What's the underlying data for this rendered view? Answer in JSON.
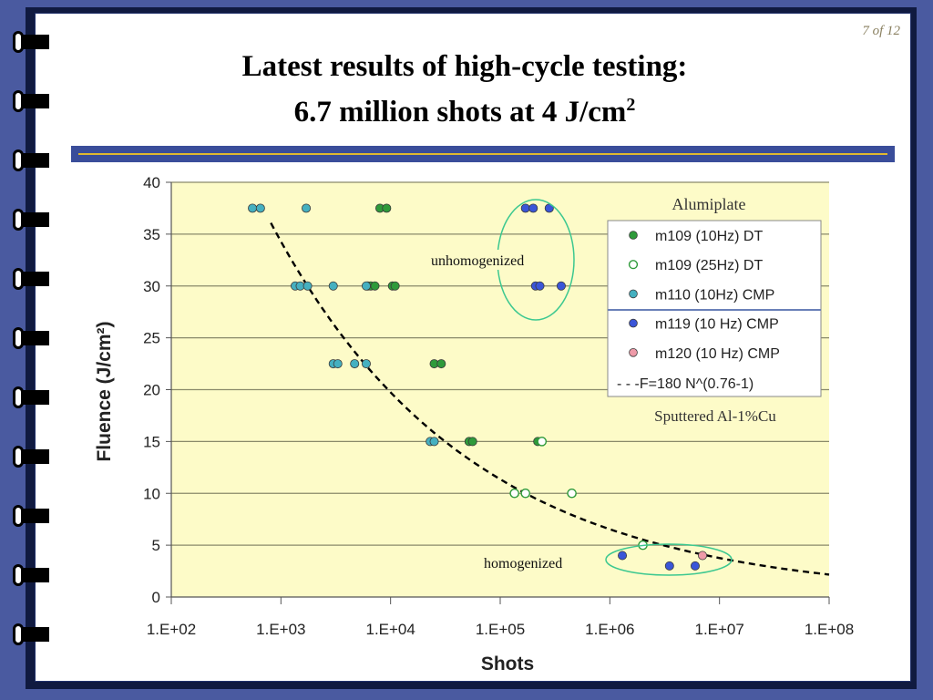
{
  "slide": {
    "page_number": "7 of 12",
    "title_line1": "Latest results of high-cycle testing:",
    "title_line2_prefix": "6.7 million shots at 4 J/cm",
    "title_line2_sup": "2"
  },
  "colors": {
    "background": "#4a5aa0",
    "plot_area": "#fdfbc8",
    "title_rule": "#3a4d9a",
    "title_rule_accent": "#e0b830",
    "annotation_ellipse": "#3cc890"
  },
  "chart_data": {
    "type": "scatter",
    "xlabel": "Shots",
    "ylabel": "Fluence (J/cm²)",
    "xscale": "log",
    "xlim": [
      100,
      100000000
    ],
    "ylim": [
      0,
      40
    ],
    "x_ticks": [
      100,
      1000,
      10000,
      100000,
      1000000,
      10000000,
      100000000
    ],
    "x_tick_labels": [
      "1.E+02",
      "1.E+03",
      "1.E+04",
      "1.E+05",
      "1.E+06",
      "1.E+07",
      "1.E+08"
    ],
    "y_ticks": [
      0,
      5,
      10,
      15,
      20,
      25,
      30,
      35,
      40
    ],
    "y_tick_labels": [
      "0",
      "5",
      "10",
      "15",
      "20",
      "25",
      "30",
      "35",
      "40"
    ],
    "grid": "horizontal",
    "legend_position": "top-right",
    "legend_title": "Alumiplate",
    "series": [
      {
        "name": "m109 (10Hz) DT",
        "marker": "filled",
        "color": "#2e9a3a",
        "points": [
          [
            8000,
            37.5
          ],
          [
            9200,
            37.5
          ],
          [
            6200,
            30
          ],
          [
            6600,
            30
          ],
          [
            7200,
            30
          ],
          [
            10400,
            30
          ],
          [
            11000,
            30
          ],
          [
            25000,
            22.5
          ],
          [
            29000,
            22.5
          ],
          [
            52000,
            15
          ],
          [
            56000,
            15
          ],
          [
            220000,
            15
          ]
        ]
      },
      {
        "name": "m109 (25Hz) DT",
        "marker": "hollow",
        "color": "#2e9a3a",
        "points": [
          [
            240000,
            15
          ],
          [
            135000,
            10
          ],
          [
            170000,
            10
          ],
          [
            450000,
            10
          ],
          [
            2000000,
            5
          ]
        ]
      },
      {
        "name": "m110 (10Hz) CMP",
        "marker": "filled",
        "color": "#45b0c0",
        "points": [
          [
            550,
            37.5
          ],
          [
            650,
            37.5
          ],
          [
            1700,
            37.5
          ],
          [
            1350,
            30
          ],
          [
            1500,
            30
          ],
          [
            1750,
            30
          ],
          [
            3000,
            30
          ],
          [
            6000,
            30
          ],
          [
            3000,
            22.5
          ],
          [
            3300,
            22.5
          ],
          [
            4700,
            22.5
          ],
          [
            6000,
            22.5
          ],
          [
            23000,
            15
          ],
          [
            25000,
            15
          ]
        ]
      },
      {
        "name": "m119 (10 Hz) CMP",
        "marker": "filled",
        "color": "#3a55d8",
        "points": [
          [
            170000,
            37.5
          ],
          [
            200000,
            37.5
          ],
          [
            280000,
            37.5
          ],
          [
            210000,
            30
          ],
          [
            230000,
            30
          ],
          [
            360000,
            30
          ],
          [
            1300000,
            4
          ],
          [
            3500000,
            3
          ],
          [
            6000000,
            3
          ]
        ]
      },
      {
        "name": "m120 (10 Hz) CMP",
        "marker": "filled",
        "color": "#ee9aa8",
        "points": [
          [
            7000000,
            4
          ]
        ]
      },
      {
        "name": "- - -F=180 N^(0.76-1)",
        "type": "line",
        "style": "dashed",
        "color": "#000000",
        "formula": "F = 180 N^(0.76-1)",
        "x_range": [
          810,
          100000000
        ]
      }
    ],
    "annotations": [
      {
        "text": "Sputtered Al-1%Cu",
        "position": "right, below legend"
      },
      {
        "text": "unhomogenized",
        "position": "left of circled m119 points at 30–37.5 J/cm²"
      },
      {
        "text": "homogenized",
        "position": "left of circled points near 3–5 J/cm²"
      }
    ]
  }
}
